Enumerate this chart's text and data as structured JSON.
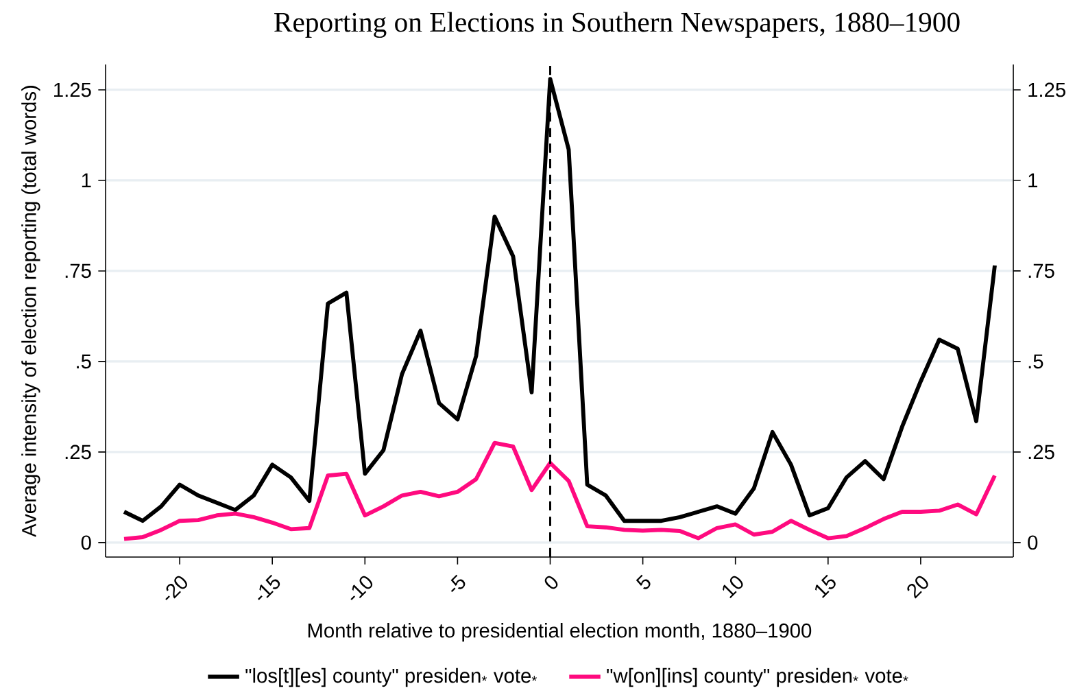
{
  "chart_data": {
    "type": "line",
    "title": "Reporting on Elections in Southern Newspapers, 1880–1900",
    "xlabel": "Month relative to presidential election month, 1880–1900",
    "ylabel": "Average intensity of election reporting (total words)",
    "x": [
      -23,
      -22,
      -21,
      -20,
      -19,
      -18,
      -17,
      -16,
      -15,
      -14,
      -13,
      -12,
      -11,
      -10,
      -9,
      -8,
      -7,
      -6,
      -5,
      -4,
      -3,
      -2,
      -1,
      0,
      1,
      2,
      3,
      4,
      5,
      6,
      7,
      8,
      9,
      10,
      11,
      12,
      13,
      14,
      15,
      16,
      17,
      18,
      19,
      20,
      21,
      22,
      23,
      24
    ],
    "series": [
      {
        "name": "\"los[t][es] county\" presiden$_{*}$ vote$_{*}$",
        "color": "#000000",
        "values": [
          0.085,
          0.06,
          0.1,
          0.16,
          0.13,
          0.11,
          0.09,
          0.13,
          0.215,
          0.18,
          0.115,
          0.66,
          0.69,
          0.19,
          0.255,
          0.465,
          0.585,
          0.385,
          0.34,
          0.515,
          0.9,
          0.79,
          0.415,
          1.28,
          1.085,
          0.16,
          0.13,
          0.06,
          0.06,
          0.06,
          0.07,
          0.085,
          0.1,
          0.08,
          0.15,
          0.305,
          0.215,
          0.075,
          0.095,
          0.18,
          0.225,
          0.175,
          0.32,
          0.445,
          0.56,
          0.535,
          0.335,
          0.765
        ]
      },
      {
        "name": "\"w[on][ins] county\" presiden$_{*}$ vote$_{*}$",
        "color": "#ff0a7f",
        "values": [
          0.01,
          0.015,
          0.035,
          0.06,
          0.062,
          0.075,
          0.08,
          0.07,
          0.055,
          0.037,
          0.04,
          0.185,
          0.19,
          0.075,
          0.1,
          0.13,
          0.14,
          0.128,
          0.14,
          0.175,
          0.275,
          0.265,
          0.145,
          0.22,
          0.17,
          0.045,
          0.042,
          0.035,
          0.033,
          0.035,
          0.032,
          0.012,
          0.04,
          0.05,
          0.022,
          0.03,
          0.06,
          0.035,
          0.012,
          0.018,
          0.04,
          0.065,
          0.085,
          0.085,
          0.088,
          0.105,
          0.078,
          0.185
        ]
      }
    ],
    "xlim": [
      -24,
      25
    ],
    "ylim": [
      -0.04,
      1.32
    ],
    "y2lim": [
      -0.04,
      1.32
    ],
    "xticks": [
      -20,
      -15,
      -10,
      -5,
      0,
      5,
      10,
      15,
      20
    ],
    "yticks": [
      0,
      {
        "value": 0.25,
        "label": ".25"
      },
      {
        "value": 0.5,
        "label": ".5"
      },
      {
        "value": 0.75,
        "label": ".75"
      },
      1,
      {
        "value": 1.25,
        "label": "1.25"
      }
    ],
    "y2ticks": [
      0,
      {
        "value": 0.25,
        "label": ".25"
      },
      {
        "value": 0.5,
        "label": ".5"
      },
      {
        "value": 0.75,
        "label": ".75"
      },
      1,
      {
        "value": 1.25,
        "label": "1.25"
      }
    ],
    "ref_lines": [
      {
        "axis": "x",
        "value": 0,
        "line_style": "dashed",
        "color": "#000000"
      }
    ],
    "grid": "y",
    "legend": "bottom",
    "marker": "none",
    "line_style": "solid"
  }
}
